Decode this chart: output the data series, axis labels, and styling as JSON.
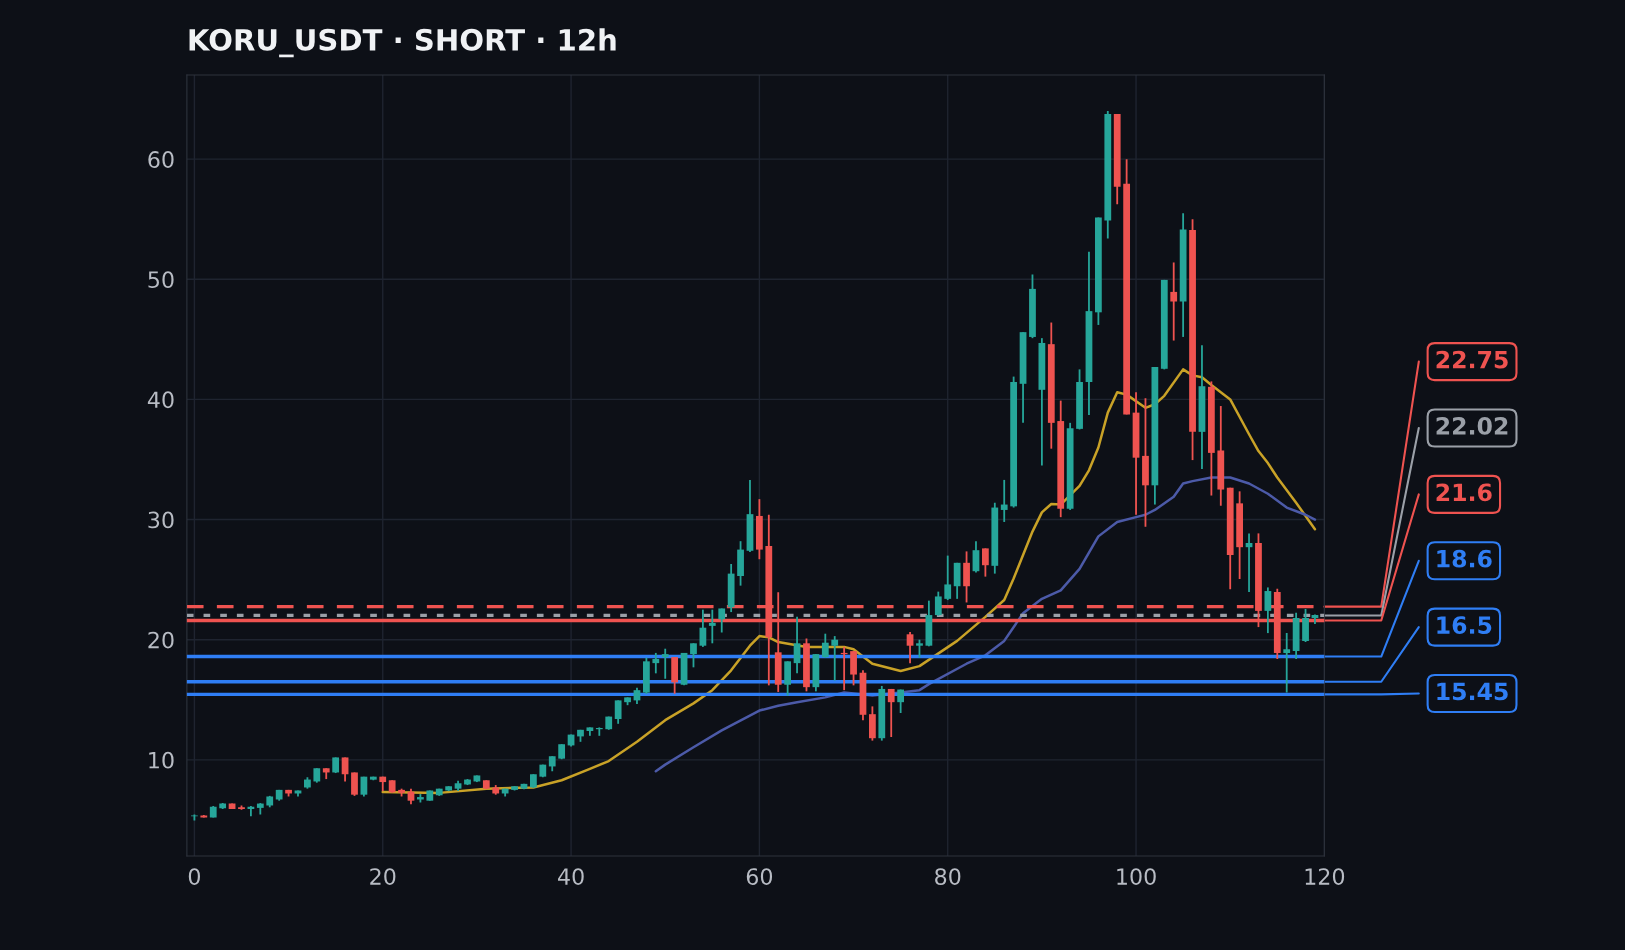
{
  "chart_data": {
    "type": "candlestick",
    "title": "KORU_USDT · SHORT · 12h",
    "x": [
      0,
      1,
      2,
      3,
      4,
      5,
      6,
      7,
      8,
      9,
      10,
      11,
      12,
      13,
      14,
      15,
      16,
      17,
      18,
      19,
      20,
      21,
      22,
      23,
      24,
      25,
      26,
      27,
      28,
      29,
      30,
      31,
      32,
      33,
      34,
      35,
      36,
      37,
      38,
      39,
      40,
      41,
      42,
      43,
      44,
      45,
      46,
      47,
      48,
      49,
      50,
      51,
      52,
      53,
      54,
      55,
      56,
      57,
      58,
      59,
      60,
      61,
      62,
      63,
      64,
      65,
      66,
      67,
      68,
      69,
      70,
      71,
      72,
      73,
      74,
      75,
      76,
      77,
      78,
      79,
      80,
      81,
      82,
      83,
      84,
      85,
      86,
      87,
      88,
      89,
      90,
      91,
      92,
      93,
      94,
      95,
      96,
      97,
      98,
      99,
      100,
      101,
      102,
      103,
      104,
      105,
      106,
      107,
      108,
      109,
      110,
      111,
      112,
      113,
      114,
      115,
      116,
      117,
      118,
      119
    ],
    "ohlc": [
      [
        5.3,
        5.45,
        4.95,
        5.36
      ],
      [
        5.36,
        5.4,
        5.2,
        5.2
      ],
      [
        5.2,
        6.15,
        5.2,
        6.1
      ],
      [
        5.97,
        6.4,
        5.9,
        6.36
      ],
      [
        6.36,
        6.36,
        5.9,
        5.9
      ],
      [
        6.05,
        6.2,
        5.85,
        5.9
      ],
      [
        5.9,
        6.15,
        5.3,
        6.1
      ],
      [
        6.0,
        6.4,
        5.45,
        6.36
      ],
      [
        6.2,
        7.0,
        6.05,
        6.95
      ],
      [
        6.7,
        7.5,
        6.6,
        7.5
      ],
      [
        7.5,
        7.5,
        6.95,
        7.2
      ],
      [
        7.2,
        7.45,
        6.95,
        7.45
      ],
      [
        7.7,
        8.55,
        7.6,
        8.36
      ],
      [
        8.2,
        9.3,
        8.1,
        9.3
      ],
      [
        9.3,
        9.3,
        8.4,
        8.95
      ],
      [
        8.95,
        10.2,
        8.9,
        10.2
      ],
      [
        10.2,
        10.2,
        8.2,
        8.8
      ],
      [
        8.95,
        8.95,
        7.0,
        7.1
      ],
      [
        7.1,
        8.6,
        6.95,
        8.6
      ],
      [
        8.35,
        8.6,
        8.3,
        8.6
      ],
      [
        8.6,
        8.6,
        7.4,
        8.15
      ],
      [
        8.3,
        8.3,
        7.25,
        7.3
      ],
      [
        7.5,
        7.6,
        6.95,
        7.25
      ],
      [
        7.35,
        7.6,
        6.3,
        6.6
      ],
      [
        6.7,
        7.15,
        6.45,
        6.9
      ],
      [
        6.6,
        7.45,
        6.6,
        7.45
      ],
      [
        7.05,
        7.6,
        7.0,
        7.6
      ],
      [
        7.45,
        7.8,
        7.4,
        7.8
      ],
      [
        7.6,
        8.25,
        7.4,
        8.05
      ],
      [
        7.95,
        8.4,
        7.9,
        8.36
      ],
      [
        8.2,
        8.7,
        8.15,
        8.7
      ],
      [
        8.3,
        8.3,
        7.55,
        7.6
      ],
      [
        7.7,
        7.9,
        7.1,
        7.2
      ],
      [
        7.2,
        7.6,
        6.95,
        7.6
      ],
      [
        7.5,
        7.8,
        7.45,
        7.8
      ],
      [
        7.6,
        8.0,
        7.55,
        8.0
      ],
      [
        7.7,
        8.8,
        7.65,
        8.8
      ],
      [
        8.6,
        9.6,
        8.55,
        9.6
      ],
      [
        9.45,
        10.3,
        9.05,
        10.3
      ],
      [
        10.1,
        11.3,
        10.05,
        11.3
      ],
      [
        11.2,
        12.1,
        11.1,
        12.1
      ],
      [
        11.95,
        12.5,
        11.5,
        12.5
      ],
      [
        12.4,
        12.7,
        12.0,
        12.7
      ],
      [
        12.55,
        12.7,
        12.0,
        12.65
      ],
      [
        12.55,
        13.6,
        12.5,
        13.6
      ],
      [
        13.4,
        14.95,
        13.0,
        14.95
      ],
      [
        14.8,
        15.2,
        14.55,
        15.2
      ],
      [
        14.95,
        16.0,
        14.65,
        15.8
      ],
      [
        15.6,
        18.5,
        15.5,
        18.2
      ],
      [
        18.05,
        18.9,
        17.2,
        18.4
      ],
      [
        18.55,
        19.25,
        16.75,
        18.8
      ],
      [
        18.55,
        18.55,
        15.5,
        16.45
      ],
      [
        16.25,
        18.9,
        16.2,
        18.9
      ],
      [
        18.8,
        19.7,
        17.7,
        19.7
      ],
      [
        19.5,
        22.5,
        19.4,
        21.0
      ],
      [
        21.15,
        22.5,
        19.7,
        21.4
      ],
      [
        21.7,
        22.6,
        20.6,
        22.6
      ],
      [
        22.7,
        26.3,
        22.3,
        25.5
      ],
      [
        25.3,
        28.2,
        24.5,
        27.5
      ],
      [
        27.4,
        33.3,
        27.3,
        30.45
      ],
      [
        30.3,
        31.7,
        26.7,
        27.5
      ],
      [
        27.8,
        30.4,
        16.2,
        20.2
      ],
      [
        18.95,
        23.95,
        15.65,
        16.25
      ],
      [
        16.25,
        18.2,
        15.35,
        18.2
      ],
      [
        18.05,
        21.9,
        17.2,
        19.7
      ],
      [
        19.7,
        20.1,
        15.7,
        16.05
      ],
      [
        16.05,
        18.8,
        15.7,
        18.8
      ],
      [
        18.55,
        20.5,
        18.5,
        19.75
      ],
      [
        19.5,
        20.3,
        16.6,
        20.0
      ],
      [
        18.9,
        19.4,
        15.8,
        18.8
      ],
      [
        19.05,
        19.05,
        16.2,
        17.1
      ],
      [
        17.25,
        17.45,
        13.3,
        13.75
      ],
      [
        13.8,
        14.45,
        11.6,
        11.8
      ],
      [
        11.8,
        16.15,
        11.6,
        15.9
      ],
      [
        15.9,
        15.9,
        11.9,
        14.8
      ],
      [
        14.8,
        15.85,
        13.9,
        15.85
      ],
      [
        20.45,
        20.65,
        18.05,
        19.5
      ],
      [
        19.5,
        20.0,
        18.5,
        19.7
      ],
      [
        19.5,
        23.25,
        19.45,
        22.05
      ],
      [
        22.05,
        24.0,
        22.0,
        23.6
      ],
      [
        23.4,
        27.0,
        23.3,
        24.6
      ],
      [
        24.45,
        26.4,
        23.4,
        26.4
      ],
      [
        26.4,
        27.35,
        23.1,
        24.45
      ],
      [
        25.7,
        28.2,
        25.6,
        27.45
      ],
      [
        27.6,
        27.6,
        25.25,
        26.2
      ],
      [
        26.15,
        31.4,
        25.5,
        31.0
      ],
      [
        30.8,
        33.3,
        29.8,
        31.25
      ],
      [
        31.1,
        41.9,
        31.0,
        41.45
      ],
      [
        41.3,
        45.6,
        38.05,
        45.6
      ],
      [
        45.2,
        50.4,
        45.1,
        49.2
      ],
      [
        40.8,
        45.1,
        34.5,
        44.7
      ],
      [
        44.6,
        46.4,
        35.9,
        38.05
      ],
      [
        38.2,
        39.9,
        30.2,
        30.9
      ],
      [
        30.9,
        38.05,
        30.8,
        37.6
      ],
      [
        37.55,
        42.5,
        37.5,
        41.45
      ],
      [
        41.45,
        52.3,
        38.7,
        47.35
      ],
      [
        47.25,
        55.15,
        46.2,
        55.15
      ],
      [
        54.9,
        64.0,
        53.4,
        63.75
      ],
      [
        63.75,
        63.75,
        56.25,
        57.7
      ],
      [
        57.95,
        60.0,
        38.75,
        38.75
      ],
      [
        38.9,
        40.6,
        30.4,
        35.15
      ],
      [
        35.3,
        40.1,
        29.4,
        32.85
      ],
      [
        32.85,
        42.7,
        31.25,
        42.7
      ],
      [
        42.55,
        49.95,
        42.5,
        49.95
      ],
      [
        48.95,
        51.4,
        44.9,
        48.15
      ],
      [
        48.15,
        55.5,
        45.2,
        54.15
      ],
      [
        54.1,
        55.0,
        34.95,
        37.3
      ],
      [
        37.3,
        44.5,
        34.2,
        41.1
      ],
      [
        41.05,
        41.5,
        32.0,
        35.55
      ],
      [
        35.75,
        39.45,
        31.15,
        32.5
      ],
      [
        32.65,
        32.65,
        24.2,
        27.05
      ],
      [
        31.35,
        32.35,
        25.05,
        27.7
      ],
      [
        27.7,
        28.85,
        23.97,
        28.05
      ],
      [
        28.05,
        28.85,
        21.05,
        22.4
      ],
      [
        22.4,
        24.35,
        20.55,
        24.05
      ],
      [
        23.97,
        24.25,
        18.4,
        18.9
      ],
      [
        18.9,
        20.55,
        15.6,
        19.2
      ],
      [
        19.05,
        22.25,
        18.4,
        21.8
      ],
      [
        19.9,
        22.55,
        19.8,
        21.8
      ],
      [
        21.8,
        22.1,
        21.3,
        22.05
      ]
    ],
    "colors": [
      "#26a69a",
      "#ef5350",
      "#26a69a",
      "#26a69a",
      "#ef5350",
      "#ef5350",
      "#26a69a",
      "#26a69a",
      "#26a69a",
      "#26a69a",
      "#ef5350",
      "#26a69a",
      "#26a69a",
      "#26a69a",
      "#ef5350",
      "#26a69a",
      "#ef5350",
      "#ef5350",
      "#26a69a",
      "#26a69a",
      "#ef5350",
      "#ef5350",
      "#ef5350",
      "#ef5350",
      "#26a69a",
      "#26a69a",
      "#26a69a",
      "#26a69a",
      "#26a69a",
      "#26a69a",
      "#26a69a",
      "#ef5350",
      "#ef5350",
      "#26a69a",
      "#26a69a",
      "#26a69a",
      "#26a69a",
      "#26a69a",
      "#26a69a",
      "#26a69a",
      "#26a69a",
      "#26a69a",
      "#26a69a",
      "#26a69a",
      "#26a69a",
      "#26a69a",
      "#26a69a",
      "#26a69a",
      "#26a69a",
      "#26a69a",
      "#26a69a",
      "#ef5350",
      "#26a69a",
      "#26a69a",
      "#26a69a",
      "#26a69a",
      "#26a69a",
      "#26a69a",
      "#26a69a",
      "#26a69a",
      "#ef5350",
      "#ef5350",
      "#ef5350",
      "#26a69a",
      "#26a69a",
      "#ef5350",
      "#26a69a",
      "#26a69a",
      "#26a69a",
      "#ef5350",
      "#ef5350",
      "#ef5350",
      "#ef5350",
      "#26a69a",
      "#ef5350",
      "#26a69a",
      "#ef5350",
      "#26a69a",
      "#26a69a",
      "#26a69a",
      "#26a69a",
      "#26a69a",
      "#ef5350",
      "#26a69a",
      "#ef5350",
      "#26a69a",
      "#26a69a",
      "#26a69a",
      "#26a69a",
      "#26a69a",
      "#26a69a",
      "#ef5350",
      "#ef5350",
      "#26a69a",
      "#26a69a",
      "#26a69a",
      "#26a69a",
      "#26a69a",
      "#ef5350",
      "#ef5350",
      "#ef5350",
      "#ef5350",
      "#26a69a",
      "#26a69a",
      "#ef5350",
      "#26a69a",
      "#ef5350",
      "#26a69a",
      "#ef5350",
      "#ef5350",
      "#ef5350",
      "#ef5350",
      "#26a69a",
      "#ef5350",
      "#26a69a",
      "#ef5350",
      "#26a69a",
      "#26a69a",
      "#26a69a",
      "#26a69a"
    ],
    "series": [
      {
        "type": "line",
        "color": "#c9a227",
        "x": [
          20,
          26,
          31,
          36,
          39,
          42,
          44,
          47,
          50,
          53,
          55,
          57,
          59,
          60,
          61,
          62,
          65,
          69,
          70,
          72,
          75,
          77,
          81,
          84,
          86,
          87,
          89,
          90,
          91,
          92,
          94,
          95,
          96,
          97,
          98,
          99,
          101,
          102,
          103,
          105,
          106,
          107,
          108,
          110,
          112,
          113,
          114,
          115,
          117,
          119
        ],
        "values": [
          7.33,
          7.25,
          7.6,
          7.7,
          8.3,
          9.25,
          9.9,
          11.5,
          13.3,
          14.7,
          15.8,
          17.45,
          19.5,
          20.3,
          20.2,
          19.8,
          19.4,
          19.4,
          19.2,
          18.0,
          17.4,
          17.8,
          19.9,
          21.9,
          23.3,
          25.1,
          29.0,
          30.6,
          31.3,
          31.25,
          32.8,
          34.1,
          36.0,
          38.9,
          40.6,
          40.4,
          39.3,
          39.6,
          40.3,
          42.5,
          42.0,
          41.85,
          41.2,
          40.0,
          37.1,
          35.7,
          34.7,
          33.5,
          31.4,
          29.2
        ]
      },
      {
        "type": "line",
        "color": "#4c5aa8",
        "x": [
          49,
          50,
          53,
          56,
          60,
          62,
          64,
          67,
          69,
          72,
          75,
          77,
          78,
          82,
          84,
          86,
          88,
          90,
          92,
          94,
          96,
          98,
          100,
          101,
          102,
          104,
          105,
          106,
          108,
          110,
          112,
          114,
          116,
          118,
          119
        ],
        "values": [
          9.05,
          9.6,
          11.05,
          12.45,
          14.1,
          14.5,
          14.8,
          15.2,
          15.6,
          15.35,
          15.6,
          15.8,
          16.3,
          18.0,
          18.7,
          19.9,
          22.2,
          23.4,
          24.1,
          25.9,
          28.6,
          29.8,
          30.2,
          30.4,
          30.8,
          31.9,
          33.0,
          33.2,
          33.5,
          33.5,
          33.0,
          32.15,
          31.0,
          30.4,
          30.0
        ]
      }
    ],
    "ref_lines": [
      {
        "axis": "y",
        "value": 22.75,
        "label": "22.75",
        "color": "#ef5350",
        "line_style": "dashed"
      },
      {
        "axis": "y",
        "value": 22.02,
        "label": "22.02",
        "color": "#9ba0a8",
        "line_style": "dotted"
      },
      {
        "axis": "y",
        "value": 21.6,
        "label": "21.6",
        "color": "#ef5350",
        "line_style": "solid"
      },
      {
        "axis": "y",
        "value": 18.6,
        "label": "18.6",
        "color": "#2f7ef5",
        "line_style": "solid"
      },
      {
        "axis": "y",
        "value": 16.5,
        "label": "16.5",
        "color": "#2f7ef5",
        "line_style": "solid"
      },
      {
        "axis": "y",
        "value": 15.45,
        "label": "15.45",
        "color": "#2f7ef5",
        "line_style": "solid"
      }
    ],
    "xlim": [
      -0.8,
      120
    ],
    "xticks": [
      0,
      20,
      40,
      60,
      80,
      100,
      120
    ],
    "ylim": [
      2,
      67
    ],
    "yticks": [
      10,
      20,
      30,
      40,
      50,
      60
    ],
    "grid": true,
    "legend": false
  }
}
